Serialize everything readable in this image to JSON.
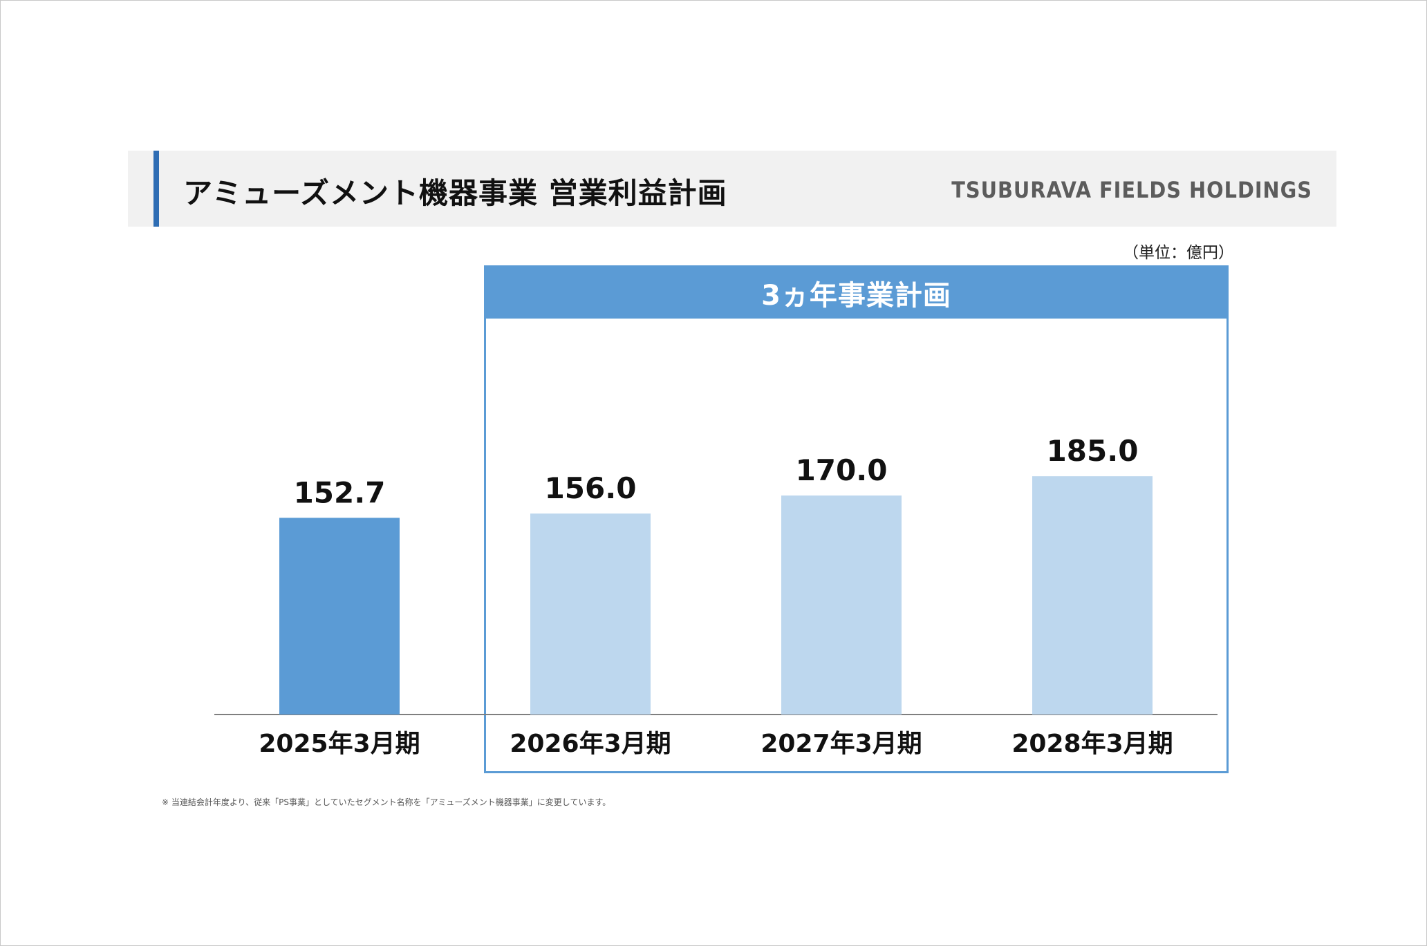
{
  "header": {
    "title": "アミューズメント機器事業 営業利益計画",
    "brand": "TSUBURAVA FIELDS HOLDINGS"
  },
  "unit_label": "（単位：億円）",
  "plan_box": {
    "title": "3ヵ年事業計画"
  },
  "footnote": "※ 当連結会計年度より、従来「PS事業」としていたセグメント名称を「アミューズメント機器事業」に変更しています。",
  "colors": {
    "actual_bar": "#5b9bd5",
    "plan_bar": "#bdd7ee",
    "accent": "#2e6db4"
  },
  "chart_data": {
    "type": "bar",
    "categories": [
      "2025年3月期",
      "2026年3月期",
      "2027年3月期",
      "2028年3月期"
    ],
    "values": [
      152.7,
      156.0,
      170.0,
      185.0
    ],
    "value_labels": [
      "152.7",
      "156.0",
      "170.0",
      "185.0"
    ],
    "bar_kind": [
      "actual",
      "plan",
      "plan",
      "plan"
    ],
    "title": "",
    "xlabel": "",
    "ylabel": "",
    "legend": "none",
    "grid": false
  }
}
